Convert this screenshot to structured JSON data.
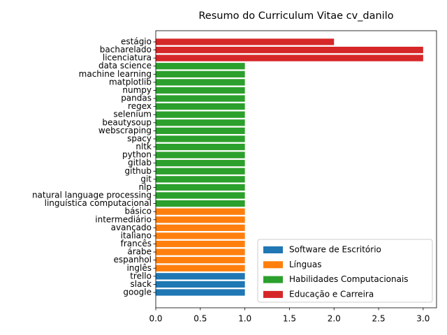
{
  "chart_data": {
    "type": "barh",
    "title": "Resumo do Curriculum Vitae cv_danilo",
    "categories": [
      "google",
      "slack",
      "trello",
      "inglês",
      "espanhol",
      "árabe",
      "francês",
      "italiano",
      "avançado",
      "intermediário",
      "básico",
      "linguística computacional",
      "natural language processing",
      "nlp",
      "git",
      "github",
      "gitlab",
      "python",
      "nltk",
      "spacy",
      "webscraping",
      "beautysoup",
      "selenium",
      "regex",
      "pandas",
      "numpy",
      "matplotlib",
      "machine learning",
      "data science",
      "licenciatura",
      "bacharelado",
      "estágio"
    ],
    "series": [
      {
        "name": "Software de Escritório",
        "color": "#1f77b4",
        "values": [
          1,
          1,
          1,
          null,
          null,
          null,
          null,
          null,
          null,
          null,
          null,
          null,
          null,
          null,
          null,
          null,
          null,
          null,
          null,
          null,
          null,
          null,
          null,
          null,
          null,
          null,
          null,
          null,
          null,
          null,
          null,
          null
        ]
      },
      {
        "name": "Línguas",
        "color": "#ff7f0e",
        "values": [
          null,
          null,
          null,
          1,
          1,
          1,
          1,
          1,
          1,
          1,
          1,
          null,
          null,
          null,
          null,
          null,
          null,
          null,
          null,
          null,
          null,
          null,
          null,
          null,
          null,
          null,
          null,
          null,
          null,
          null,
          null,
          null
        ]
      },
      {
        "name": "Habilidades Computacionais",
        "color": "#2ca02c",
        "values": [
          null,
          null,
          null,
          null,
          null,
          null,
          null,
          null,
          null,
          null,
          null,
          1,
          1,
          1,
          1,
          1,
          1,
          1,
          1,
          1,
          1,
          1,
          1,
          1,
          1,
          1,
          1,
          1,
          1,
          null,
          null,
          null
        ]
      },
      {
        "name": "Educação e Carreira",
        "color": "#d62728",
        "values": [
          null,
          null,
          null,
          null,
          null,
          null,
          null,
          null,
          null,
          null,
          null,
          null,
          null,
          null,
          null,
          null,
          null,
          null,
          null,
          null,
          null,
          null,
          null,
          null,
          null,
          null,
          null,
          null,
          null,
          3,
          3,
          2
        ]
      }
    ],
    "xlim": [
      0,
      3.15
    ],
    "xticks": [
      {
        "value": 0,
        "label": "0.0"
      },
      {
        "value": 0.5,
        "label": "0.5"
      },
      {
        "value": 1,
        "label": "1.0"
      },
      {
        "value": 1.5,
        "label": "1.5"
      },
      {
        "value": 2,
        "label": "2.0"
      },
      {
        "value": 2.5,
        "label": "2.5"
      },
      {
        "value": 3,
        "label": "3.0"
      }
    ],
    "legend": "lower right"
  }
}
